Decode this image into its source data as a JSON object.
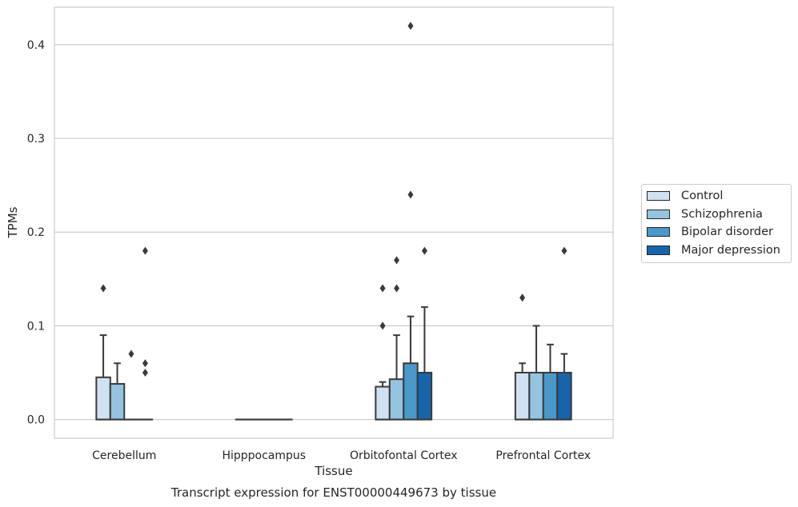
{
  "chart_data": {
    "type": "box",
    "title": "Transcript expression for ENST00000449673 by tissue",
    "xlabel": "Tissue",
    "ylabel": "TPMs",
    "ylim": [
      -0.02,
      0.44
    ],
    "yticks": [
      "0.0",
      "0.1",
      "0.2",
      "0.3",
      "0.4"
    ],
    "categories": [
      "Cerebellum",
      "Hipppocampus",
      "Orbitofontal Cortex",
      "Prefrontal Cortex"
    ],
    "legend_position": "right",
    "grid": "horizontal",
    "series": [
      {
        "name": "Control",
        "color": "#d0e1f1",
        "boxes": [
          {
            "q1": 0.0,
            "median": 0.0,
            "q3": 0.045,
            "whisker_low": 0.0,
            "whisker_high": 0.09,
            "outliers": [
              0.14
            ]
          },
          {
            "q1": 0.0,
            "median": 0.0,
            "q3": 0.0,
            "whisker_low": 0.0,
            "whisker_high": 0.0,
            "outliers": []
          },
          {
            "q1": 0.0,
            "median": 0.0,
            "q3": 0.035,
            "whisker_low": 0.0,
            "whisker_high": 0.04,
            "outliers": [
              0.1,
              0.14
            ]
          },
          {
            "q1": 0.0,
            "median": 0.0,
            "q3": 0.05,
            "whisker_low": 0.0,
            "whisker_high": 0.06,
            "outliers": [
              0.13
            ]
          }
        ]
      },
      {
        "name": "Schizophrenia",
        "color": "#94c4df",
        "boxes": [
          {
            "q1": 0.0,
            "median": 0.0,
            "q3": 0.038,
            "whisker_low": 0.0,
            "whisker_high": 0.06,
            "outliers": []
          },
          {
            "q1": 0.0,
            "median": 0.0,
            "q3": 0.0,
            "whisker_low": 0.0,
            "whisker_high": 0.0,
            "outliers": []
          },
          {
            "q1": 0.0,
            "median": 0.0,
            "q3": 0.043,
            "whisker_low": 0.0,
            "whisker_high": 0.09,
            "outliers": [
              0.14,
              0.17
            ]
          },
          {
            "q1": 0.0,
            "median": 0.0,
            "q3": 0.05,
            "whisker_low": 0.0,
            "whisker_high": 0.1,
            "outliers": []
          }
        ]
      },
      {
        "name": "Bipolar disorder",
        "color": "#4a98c9",
        "boxes": [
          {
            "q1": 0.0,
            "median": 0.0,
            "q3": 0.0,
            "whisker_low": 0.0,
            "whisker_high": 0.0,
            "outliers": [
              0.07
            ]
          },
          {
            "q1": 0.0,
            "median": 0.0,
            "q3": 0.0,
            "whisker_low": 0.0,
            "whisker_high": 0.0,
            "outliers": []
          },
          {
            "q1": 0.0,
            "median": 0.0,
            "q3": 0.06,
            "whisker_low": 0.0,
            "whisker_high": 0.11,
            "outliers": [
              0.24,
              0.42
            ]
          },
          {
            "q1": 0.0,
            "median": 0.0,
            "q3": 0.05,
            "whisker_low": 0.0,
            "whisker_high": 0.08,
            "outliers": []
          }
        ]
      },
      {
        "name": "Major depression",
        "color": "#1764ab",
        "boxes": [
          {
            "q1": 0.0,
            "median": 0.0,
            "q3": 0.0,
            "whisker_low": 0.0,
            "whisker_high": 0.0,
            "outliers": [
              0.05,
              0.06,
              0.18
            ]
          },
          {
            "q1": 0.0,
            "median": 0.0,
            "q3": 0.0,
            "whisker_low": 0.0,
            "whisker_high": 0.0,
            "outliers": []
          },
          {
            "q1": 0.0,
            "median": 0.0,
            "q3": 0.05,
            "whisker_low": 0.0,
            "whisker_high": 0.12,
            "outliers": [
              0.18
            ]
          },
          {
            "q1": 0.0,
            "median": 0.0,
            "q3": 0.05,
            "whisker_low": 0.0,
            "whisker_high": 0.07,
            "outliers": [
              0.18
            ]
          }
        ]
      }
    ]
  }
}
